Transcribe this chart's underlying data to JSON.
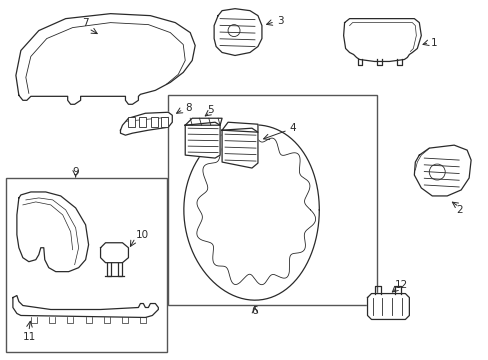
{
  "bg_color": "#ffffff",
  "line_color": "#2a2a2a",
  "label_color": "#000000",
  "fig_width": 4.89,
  "fig_height": 3.6,
  "dpi": 100
}
